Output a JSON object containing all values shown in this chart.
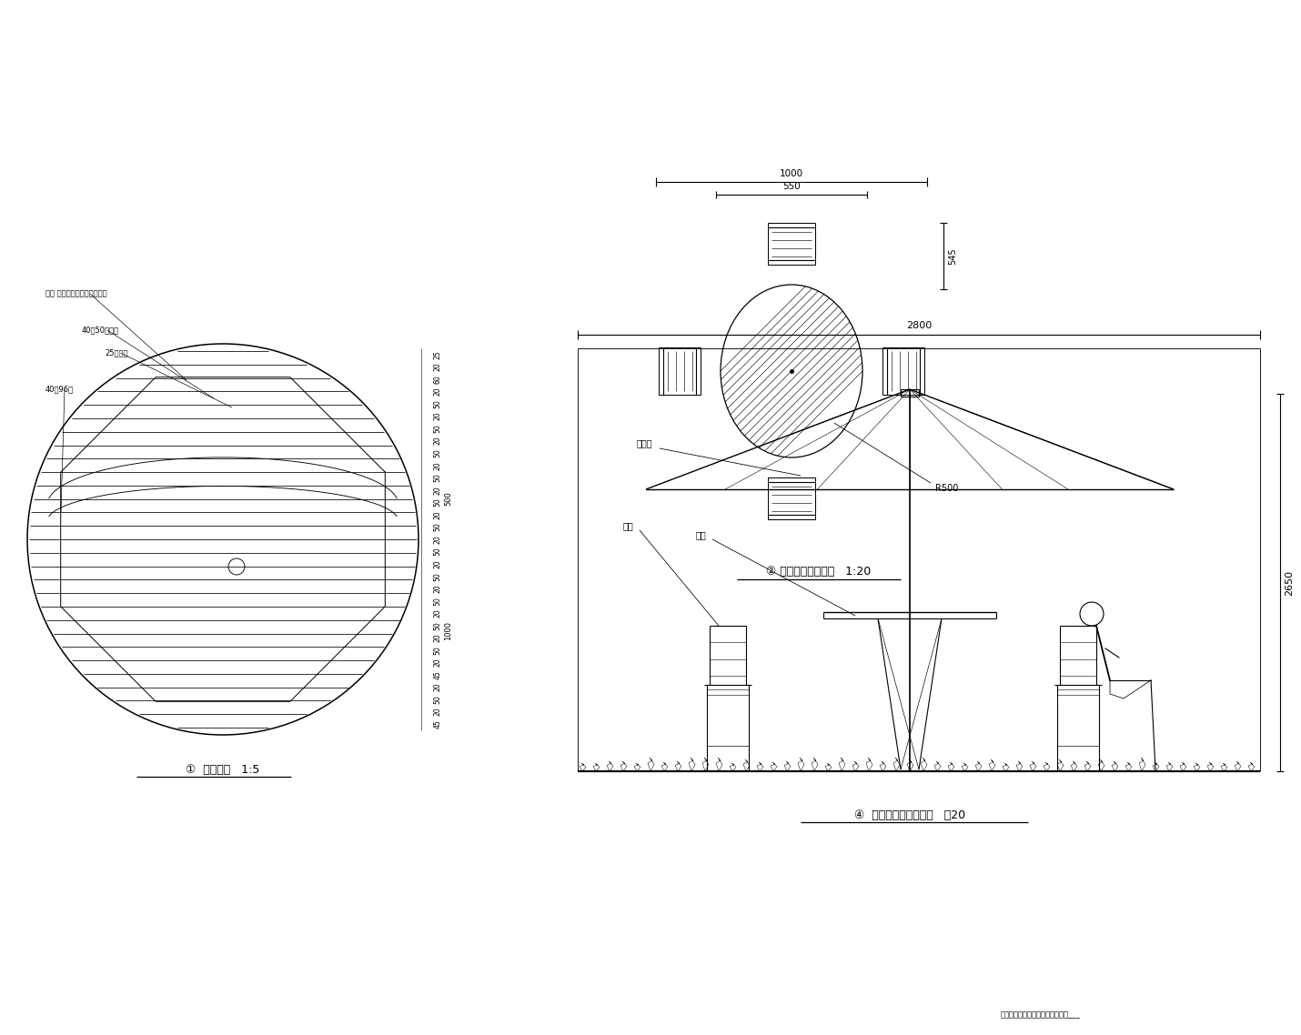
{
  "bg_color": "#ffffff",
  "line_color": "#000000",
  "title1": "①  木桌平面   1:5",
  "title2": "② 内析桦组平面示意   1:20",
  "title3": "④  木桂椅组合立面示意   ：20",
  "label_hole": "孔洞 （大小阅阳伞伞拆尺局）",
  "label_plank": "40厕50宽装木",
  "label_gap": "25宽拼拼",
  "label_frame": "40厕96木",
  "dim_1000": "1000",
  "dim_550": "550",
  "dim_545": "545",
  "dim_R500": "R500",
  "dim_2800": "2800",
  "dim_2650": "2650",
  "label_sunshade": "遗阳伞",
  "label_chair": "木椅",
  "label_table": "木桐",
  "note": "注：图示尺寸请参考尺寸，以厂家___"
}
